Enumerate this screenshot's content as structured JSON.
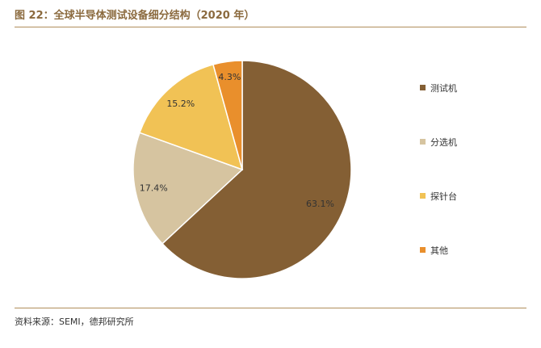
{
  "header": {
    "title": "图 22：全球半导体测试设备细分结构（2020 年）"
  },
  "footer": {
    "source": "资料来源：SEMI，德邦研究所"
  },
  "chart_data": {
    "type": "pie",
    "categories": [
      "测试机",
      "分选机",
      "探针台",
      "其他"
    ],
    "values": [
      63.1,
      17.4,
      15.2,
      4.3
    ],
    "labels": [
      "63.1%",
      "17.4%",
      "15.2%",
      "4.3%"
    ],
    "colors": [
      "#845f34",
      "#d6c4a0",
      "#f1c255",
      "#e98f2c"
    ],
    "start": "12 o'clock",
    "direction": "clockwise",
    "legend": "right"
  }
}
